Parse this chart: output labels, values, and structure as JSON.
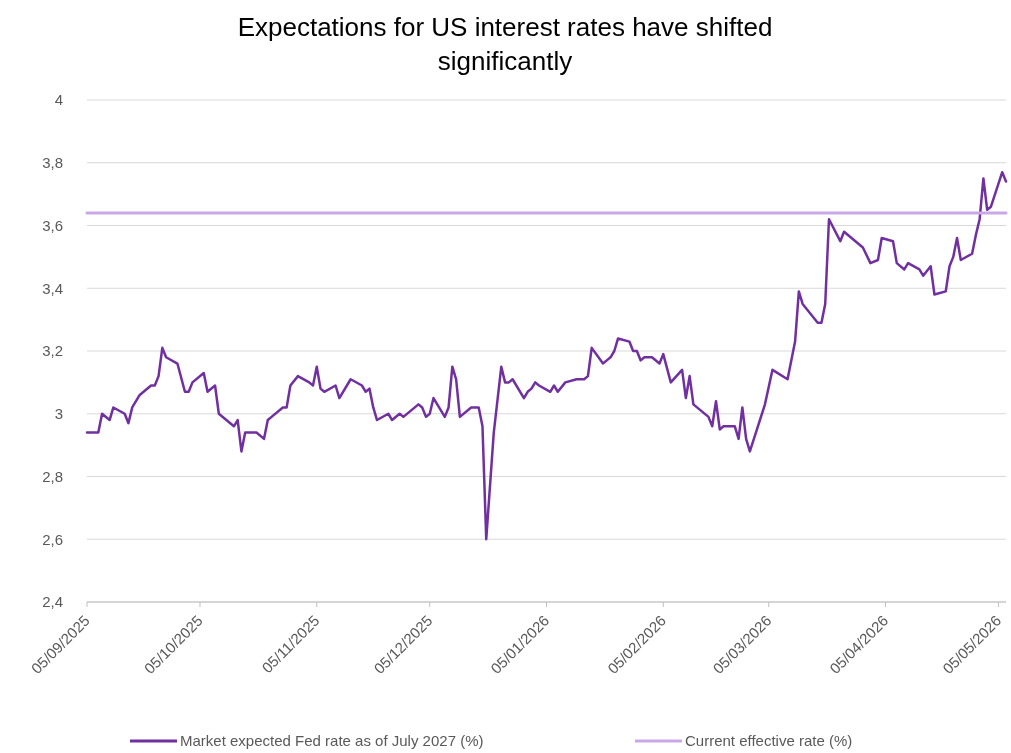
{
  "chart_data": {
    "type": "line",
    "title": "Expectations for US interest rates have shifted significantly",
    "xlim": [
      "2025-09-05",
      "2026-05-07"
    ],
    "xticks": [
      {
        "value": "2025-09-05",
        "label": "05/09/2025"
      },
      {
        "value": "2025-10-05",
        "label": "05/10/2025"
      },
      {
        "value": "2025-11-05",
        "label": "05/11/2025"
      },
      {
        "value": "2025-12-05",
        "label": "05/12/2025"
      },
      {
        "value": "2026-01-05",
        "label": "05/01/2026"
      },
      {
        "value": "2026-02-05",
        "label": "05/02/2026"
      },
      {
        "value": "2026-03-05",
        "label": "05/03/2026"
      },
      {
        "value": "2026-04-05",
        "label": "05/04/2026"
      },
      {
        "value": "2026-05-05",
        "label": "05/05/2026"
      }
    ],
    "ylim": [
      2.4,
      4
    ],
    "yticks": [
      {
        "value": 2.4,
        "label": "2,4"
      },
      {
        "value": 2.6,
        "label": "2,6"
      },
      {
        "value": 2.8,
        "label": "2,8"
      },
      {
        "value": 3,
        "label": "3"
      },
      {
        "value": 3.2,
        "label": "3,2"
      },
      {
        "value": 3.4,
        "label": "3,4"
      },
      {
        "value": 3.6,
        "label": "3,6"
      },
      {
        "value": 3.8,
        "label": "3,8"
      },
      {
        "value": 4,
        "label": "4"
      }
    ],
    "grid": "y",
    "legend": "bottom",
    "line_style": "solid",
    "series": [
      {
        "name": "Market expected Fed rate as of July 2027 (%)",
        "color": "#7030a0",
        "x": [
          "2025-09-05",
          "2025-09-08",
          "2025-09-09",
          "2025-09-11",
          "2025-09-12",
          "2025-09-15",
          "2025-09-16",
          "2025-09-17",
          "2025-09-19",
          "2025-09-22",
          "2025-09-23",
          "2025-09-24",
          "2025-09-25",
          "2025-09-26",
          "2025-09-29",
          "2025-10-01",
          "2025-10-02",
          "2025-10-03",
          "2025-10-06",
          "2025-10-07",
          "2025-10-09",
          "2025-10-10",
          "2025-10-14",
          "2025-10-15",
          "2025-10-16",
          "2025-10-17",
          "2025-10-20",
          "2025-10-22",
          "2025-10-23",
          "2025-10-24",
          "2025-10-27",
          "2025-10-28",
          "2025-10-29",
          "2025-10-31",
          "2025-11-03",
          "2025-11-04",
          "2025-11-05",
          "2025-11-06",
          "2025-11-07",
          "2025-11-10",
          "2025-11-11",
          "2025-11-14",
          "2025-11-17",
          "2025-11-18",
          "2025-11-19",
          "2025-11-20",
          "2025-11-21",
          "2025-11-24",
          "2025-11-25",
          "2025-11-27",
          "2025-11-28",
          "2025-12-02",
          "2025-12-03",
          "2025-12-04",
          "2025-12-05",
          "2025-12-06",
          "2025-12-09",
          "2025-12-10",
          "2025-12-11",
          "2025-12-12",
          "2025-12-13",
          "2025-12-16",
          "2025-12-17",
          "2025-12-18",
          "2025-12-19",
          "2025-12-20",
          "2025-12-22",
          "2025-12-24",
          "2025-12-25",
          "2025-12-26",
          "2025-12-27",
          "2025-12-30",
          "2025-12-31",
          "2026-01-01",
          "2026-01-02",
          "2026-01-03",
          "2026-01-06",
          "2026-01-07",
          "2026-01-08",
          "2026-01-10",
          "2026-01-13",
          "2026-01-15",
          "2026-01-16",
          "2026-01-17",
          "2026-01-20",
          "2026-01-21",
          "2026-01-22",
          "2026-01-23",
          "2026-01-24",
          "2026-01-27",
          "2026-01-28",
          "2026-01-29",
          "2026-01-30",
          "2026-01-31",
          "2026-02-02",
          "2026-02-04",
          "2026-02-05",
          "2026-02-07",
          "2026-02-10",
          "2026-02-11",
          "2026-02-12",
          "2026-02-13",
          "2026-02-17",
          "2026-02-18",
          "2026-02-19",
          "2026-02-20",
          "2026-02-21",
          "2026-02-24",
          "2026-02-25",
          "2026-02-26",
          "2026-02-27",
          "2026-02-28",
          "2026-03-04",
          "2026-03-06",
          "2026-03-10",
          "2026-03-12",
          "2026-03-13",
          "2026-03-14",
          "2026-03-18",
          "2026-03-19",
          "2026-03-20",
          "2026-03-21",
          "2026-03-24",
          "2026-03-25",
          "2026-03-30",
          "2026-04-01",
          "2026-04-03",
          "2026-04-04",
          "2026-04-07",
          "2026-04-08",
          "2026-04-10",
          "2026-04-11",
          "2026-04-14",
          "2026-04-15",
          "2026-04-17",
          "2026-04-18",
          "2026-04-21",
          "2026-04-22",
          "2026-04-23",
          "2026-04-24",
          "2026-04-25",
          "2026-04-28",
          "2026-04-29",
          "2026-04-30",
          "2026-05-01",
          "2026-05-02",
          "2026-05-03",
          "2026-05-06",
          "2026-05-07"
        ],
        "values": [
          2.94,
          2.94,
          3.0,
          2.98,
          3.02,
          3.0,
          2.97,
          3.02,
          3.06,
          3.09,
          3.09,
          3.12,
          3.21,
          3.18,
          3.16,
          3.07,
          3.07,
          3.1,
          3.13,
          3.07,
          3.09,
          3.0,
          2.96,
          2.98,
          2.88,
          2.94,
          2.94,
          2.92,
          2.98,
          2.99,
          3.02,
          3.02,
          3.09,
          3.12,
          3.1,
          3.09,
          3.15,
          3.08,
          3.07,
          3.09,
          3.05,
          3.11,
          3.09,
          3.07,
          3.08,
          3.02,
          2.98,
          3.0,
          2.98,
          3.0,
          2.99,
          3.03,
          3.02,
          2.99,
          3.0,
          3.05,
          2.99,
          3.02,
          3.15,
          3.11,
          2.99,
          3.02,
          3.02,
          3.02,
          2.96,
          2.6,
          2.94,
          3.15,
          3.1,
          3.1,
          3.11,
          3.05,
          3.07,
          3.08,
          3.1,
          3.09,
          3.07,
          3.09,
          3.07,
          3.1,
          3.11,
          3.11,
          3.12,
          3.21,
          3.16,
          3.17,
          3.18,
          3.2,
          3.24,
          3.23,
          3.2,
          3.2,
          3.17,
          3.18,
          3.18,
          3.16,
          3.19,
          3.1,
          3.14,
          3.05,
          3.12,
          3.03,
          2.99,
          2.96,
          3.04,
          2.95,
          2.96,
          2.96,
          2.92,
          3.02,
          2.92,
          2.88,
          3.03,
          3.14,
          3.11,
          3.23,
          3.39,
          3.35,
          3.29,
          3.29,
          3.35,
          3.62,
          3.55,
          3.58,
          3.53,
          3.48,
          3.49,
          3.56,
          3.55,
          3.48,
          3.46,
          3.48,
          3.46,
          3.44,
          3.47,
          3.38,
          3.39,
          3.47,
          3.5,
          3.56,
          3.49,
          3.51,
          3.57,
          3.62,
          3.75,
          3.65,
          3.66,
          3.77,
          3.74
        ]
      },
      {
        "name": "Current effective rate (%)",
        "color": "#c9a8e8",
        "x": [
          "2025-09-05",
          "2026-05-07"
        ],
        "values": [
          3.64,
          3.64
        ]
      }
    ]
  }
}
